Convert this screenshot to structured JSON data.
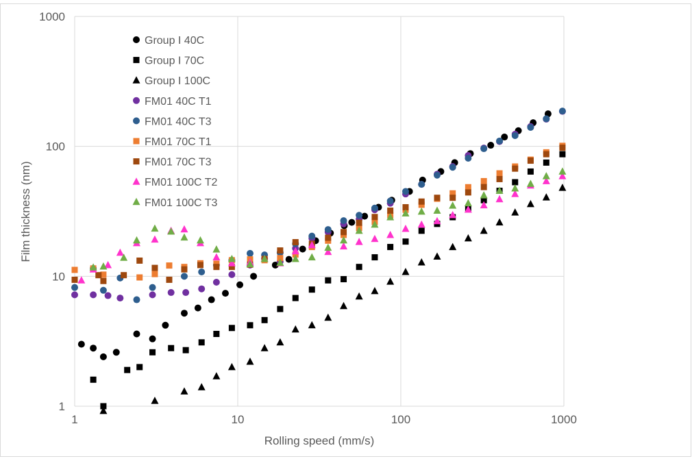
{
  "chart_data": {
    "type": "scatter",
    "xlabel": "Rolling speed (mm/s)",
    "ylabel": "Film thickness (nm)",
    "x_scale": "log",
    "y_scale": "log",
    "xlim": [
      1,
      1000
    ],
    "ylim": [
      1,
      1000
    ],
    "x_ticks": [
      "1",
      "10",
      "100",
      "1000"
    ],
    "y_ticks": [
      "1",
      "10",
      "100",
      "1000"
    ],
    "grid": true,
    "legend_position": "top-left",
    "series": [
      {
        "name": "Group I 40C",
        "marker": "circle",
        "color": "#000000",
        "points": [
          [
            1.1,
            3.0
          ],
          [
            1.3,
            2.8
          ],
          [
            1.5,
            2.4
          ],
          [
            1.8,
            2.6
          ],
          [
            2.4,
            3.6
          ],
          [
            3.0,
            3.3
          ],
          [
            3.6,
            4.2
          ],
          [
            4.7,
            5.2
          ],
          [
            5.7,
            5.7
          ],
          [
            6.9,
            6.6
          ],
          [
            8.4,
            7.4
          ],
          [
            10.3,
            8.6
          ],
          [
            12.5,
            10
          ],
          [
            17.0,
            12.2
          ],
          [
            20.6,
            13.5
          ],
          [
            25,
            16.2
          ],
          [
            30,
            18.8
          ],
          [
            37,
            21.5
          ],
          [
            45,
            24.5
          ],
          [
            50,
            26
          ],
          [
            60,
            29
          ],
          [
            73,
            34
          ],
          [
            88,
            38.5
          ],
          [
            113,
            45
          ],
          [
            136,
            55
          ],
          [
            176,
            64
          ],
          [
            214,
            75
          ],
          [
            267,
            88
          ],
          [
            356,
            102
          ],
          [
            432,
            118
          ],
          [
            526,
            132
          ],
          [
            648,
            152
          ],
          [
            800,
            178
          ]
        ]
      },
      {
        "name": "Group I 70C",
        "marker": "square",
        "color": "#000000",
        "points": [
          [
            1.3,
            1.6
          ],
          [
            1.5,
            1.0
          ],
          [
            2.1,
            1.9
          ],
          [
            2.5,
            2.0
          ],
          [
            3.0,
            2.6
          ],
          [
            3.9,
            2.8
          ],
          [
            4.8,
            2.7
          ],
          [
            6.0,
            3.1
          ],
          [
            7.4,
            3.6
          ],
          [
            9.2,
            4.0
          ],
          [
            11.9,
            4.2
          ],
          [
            14.6,
            4.6
          ],
          [
            18.2,
            5.6
          ],
          [
            22.6,
            6.8
          ],
          [
            28.5,
            7.9
          ],
          [
            35.8,
            9.3
          ],
          [
            44.6,
            9.5
          ],
          [
            55.5,
            11.8
          ],
          [
            69.2,
            14
          ],
          [
            86.2,
            16.8
          ],
          [
            107,
            18.5
          ],
          [
            134,
            22.4
          ],
          [
            167,
            25.3
          ],
          [
            208,
            28.5
          ],
          [
            259,
            33.5
          ],
          [
            323,
            38.5
          ],
          [
            403,
            45.5
          ],
          [
            502,
            53
          ],
          [
            625,
            64
          ],
          [
            780,
            75
          ],
          [
            980,
            87
          ]
        ]
      },
      {
        "name": "Group I 100C",
        "marker": "triangle",
        "color": "#000000",
        "points": [
          [
            1.5,
            0.92
          ],
          [
            3.1,
            1.1
          ],
          [
            4.7,
            1.3
          ],
          [
            6.0,
            1.4
          ],
          [
            7.4,
            1.7
          ],
          [
            9.2,
            2.0
          ],
          [
            11.9,
            2.2
          ],
          [
            14.6,
            2.8
          ],
          [
            18.2,
            3.1
          ],
          [
            22.6,
            3.9
          ],
          [
            28.5,
            4.2
          ],
          [
            35.8,
            4.8
          ],
          [
            44.6,
            5.9
          ],
          [
            55.5,
            7.0
          ],
          [
            69.2,
            7.7
          ],
          [
            86.2,
            9.1
          ],
          [
            107,
            10.8
          ],
          [
            134,
            12.8
          ],
          [
            167,
            14.2
          ],
          [
            208,
            16.8
          ],
          [
            259,
            19.6
          ],
          [
            323,
            22.4
          ],
          [
            403,
            26
          ],
          [
            502,
            31
          ],
          [
            625,
            36
          ],
          [
            780,
            40.5
          ],
          [
            980,
            48
          ]
        ]
      },
      {
        "name": "FM01 40C T1",
        "marker": "circle",
        "color": "#7030a0",
        "points": [
          [
            1.0,
            7.2
          ],
          [
            1.3,
            7.2
          ],
          [
            1.6,
            7.1
          ],
          [
            1.9,
            6.8
          ],
          [
            3.0,
            7.2
          ],
          [
            3.9,
            7.5
          ],
          [
            4.8,
            7.5
          ],
          [
            6.0,
            8.0
          ],
          [
            7.4,
            9.0
          ],
          [
            9.2,
            10.3
          ],
          [
            11.9,
            12.2
          ],
          [
            14.6,
            13.7
          ],
          [
            18.2,
            13.0
          ],
          [
            22.6,
            16.4
          ],
          [
            28.5,
            19.6
          ],
          [
            35.8,
            21.9
          ],
          [
            44.6,
            25.3
          ],
          [
            55.5,
            27.5
          ],
          [
            69.2,
            32.5
          ],
          [
            86.2,
            36.5
          ],
          [
            107,
            43
          ],
          [
            134,
            51
          ],
          [
            167,
            61
          ],
          [
            208,
            70
          ],
          [
            259,
            85
          ],
          [
            323,
            97
          ],
          [
            403,
            109
          ],
          [
            502,
            124
          ],
          [
            625,
            142
          ],
          [
            780,
            162
          ],
          [
            980,
            186
          ]
        ]
      },
      {
        "name": "FM01 40C T3",
        "marker": "circle",
        "color": "#2e5e8e",
        "points": [
          [
            1.0,
            8.2
          ],
          [
            1.3,
            11.5
          ],
          [
            1.5,
            7.8
          ],
          [
            1.9,
            9.7
          ],
          [
            2.4,
            6.6
          ],
          [
            3.0,
            8.2
          ],
          [
            4.7,
            10.0
          ],
          [
            6.0,
            10.8
          ],
          [
            7.4,
            12.2
          ],
          [
            9.2,
            13.3
          ],
          [
            11.9,
            15.0
          ],
          [
            14.6,
            14.6
          ],
          [
            18.2,
            15.2
          ],
          [
            22.6,
            17.8
          ],
          [
            28.5,
            20.4
          ],
          [
            35.8,
            22.9
          ],
          [
            44.6,
            26.8
          ],
          [
            55.5,
            29.5
          ],
          [
            69.2,
            33.5
          ],
          [
            86.2,
            38.0
          ],
          [
            107,
            45
          ],
          [
            134,
            51
          ],
          [
            167,
            60
          ],
          [
            208,
            69
          ],
          [
            259,
            81
          ],
          [
            323,
            96
          ],
          [
            403,
            110
          ],
          [
            502,
            121
          ],
          [
            625,
            140
          ],
          [
            780,
            163
          ],
          [
            980,
            187
          ]
        ]
      },
      {
        "name": "FM01 70C T1",
        "marker": "square",
        "color": "#ed7d31",
        "points": [
          [
            1.0,
            11.2
          ],
          [
            1.3,
            11.5
          ],
          [
            1.5,
            10.3
          ],
          [
            2.5,
            9.8
          ],
          [
            3.1,
            10.4
          ],
          [
            3.8,
            12.1
          ],
          [
            4.7,
            11.8
          ],
          [
            5.9,
            12.6
          ],
          [
            7.4,
            12.5
          ],
          [
            9.2,
            13.3
          ],
          [
            11.9,
            13.5
          ],
          [
            14.6,
            13.3
          ],
          [
            18.2,
            13.8
          ],
          [
            22.6,
            14.7
          ],
          [
            28.5,
            16.8
          ],
          [
            35.8,
            18.8
          ],
          [
            44.6,
            20.8
          ],
          [
            55.5,
            23.5
          ],
          [
            69.2,
            26.2
          ],
          [
            86.2,
            29.5
          ],
          [
            107,
            32.5
          ],
          [
            134,
            35.5
          ],
          [
            167,
            39.5
          ],
          [
            208,
            43.5
          ],
          [
            259,
            48.5
          ],
          [
            323,
            54
          ],
          [
            403,
            62
          ],
          [
            502,
            70
          ],
          [
            625,
            79
          ],
          [
            780,
            90
          ],
          [
            980,
            101
          ]
        ]
      },
      {
        "name": "FM01 70C T3",
        "marker": "square",
        "color": "#9e480e",
        "points": [
          [
            1.0,
            9.4
          ],
          [
            1.4,
            10.2
          ],
          [
            1.5,
            9.2
          ],
          [
            2.0,
            10.2
          ],
          [
            2.5,
            13.2
          ],
          [
            3.1,
            11.6
          ],
          [
            3.8,
            9.4
          ],
          [
            4.7,
            11.3
          ],
          [
            5.9,
            12.2
          ],
          [
            7.4,
            11.8
          ],
          [
            9.2,
            11.8
          ],
          [
            11.9,
            12.3
          ],
          [
            14.6,
            13.6
          ],
          [
            18.2,
            15.8
          ],
          [
            22.6,
            18.3
          ],
          [
            28.5,
            17.8
          ],
          [
            35.8,
            19.8
          ],
          [
            44.6,
            21.9
          ],
          [
            55.5,
            25.8
          ],
          [
            69.2,
            28.6
          ],
          [
            86.2,
            32
          ],
          [
            107,
            34
          ],
          [
            134,
            37.6
          ],
          [
            167,
            40.2
          ],
          [
            208,
            40.2
          ],
          [
            259,
            44.2
          ],
          [
            323,
            48.6
          ],
          [
            403,
            56
          ],
          [
            502,
            67.4
          ],
          [
            625,
            77.6
          ],
          [
            780,
            87
          ],
          [
            980,
            97.6
          ]
        ]
      },
      {
        "name": "FM01 100C T2",
        "marker": "triangle",
        "color": "#ff33cc",
        "points": [
          [
            1.1,
            9.3
          ],
          [
            1.3,
            11.3
          ],
          [
            1.6,
            12.2
          ],
          [
            1.9,
            15.2
          ],
          [
            2.4,
            18.0
          ],
          [
            3.1,
            19.2
          ],
          [
            3.9,
            22.4
          ],
          [
            4.7,
            23.0
          ],
          [
            5.9,
            18.0
          ],
          [
            7.4,
            14.0
          ],
          [
            9.2,
            12.6
          ],
          [
            11.9,
            12.8
          ],
          [
            14.6,
            13.6
          ],
          [
            18.2,
            12.6
          ],
          [
            22.6,
            15.6
          ],
          [
            28.5,
            17.4
          ],
          [
            35.8,
            15.4
          ],
          [
            44.6,
            17.0
          ],
          [
            55.5,
            18.4
          ],
          [
            69.2,
            19.4
          ],
          [
            86.2,
            20.8
          ],
          [
            107,
            23.2
          ],
          [
            134,
            25.0
          ],
          [
            167,
            26.6
          ],
          [
            208,
            29.6
          ],
          [
            259,
            32.6
          ],
          [
            323,
            35.2
          ],
          [
            403,
            39.2
          ],
          [
            502,
            43.0
          ],
          [
            625,
            50.0
          ],
          [
            780,
            54.0
          ],
          [
            980,
            59.0
          ]
        ]
      },
      {
        "name": "FM01 100C T3",
        "marker": "triangle",
        "color": "#70ad47",
        "points": [
          [
            1.3,
            11.7
          ],
          [
            1.5,
            11.9
          ],
          [
            2.0,
            13.9
          ],
          [
            2.4,
            18.9
          ],
          [
            3.1,
            23.3
          ],
          [
            3.9,
            22.1
          ],
          [
            4.7,
            19.9
          ],
          [
            5.9,
            18.9
          ],
          [
            7.4,
            16.1
          ],
          [
            9.2,
            13.6
          ],
          [
            11.9,
            12.4
          ],
          [
            14.6,
            13.6
          ],
          [
            18.2,
            12.7
          ],
          [
            22.6,
            13.6
          ],
          [
            28.5,
            14.0
          ],
          [
            35.8,
            16.6
          ],
          [
            44.6,
            18.9
          ],
          [
            55.5,
            22.4
          ],
          [
            69.2,
            25.0
          ],
          [
            86.2,
            28.5
          ],
          [
            107,
            30.5
          ],
          [
            134,
            31.5
          ],
          [
            167,
            32.0
          ],
          [
            208,
            35.0
          ],
          [
            259,
            36.5
          ],
          [
            323,
            42.0
          ],
          [
            403,
            45.5
          ],
          [
            502,
            47.5
          ],
          [
            625,
            51.5
          ],
          [
            780,
            59.0
          ],
          [
            980,
            64.0
          ]
        ]
      }
    ]
  }
}
